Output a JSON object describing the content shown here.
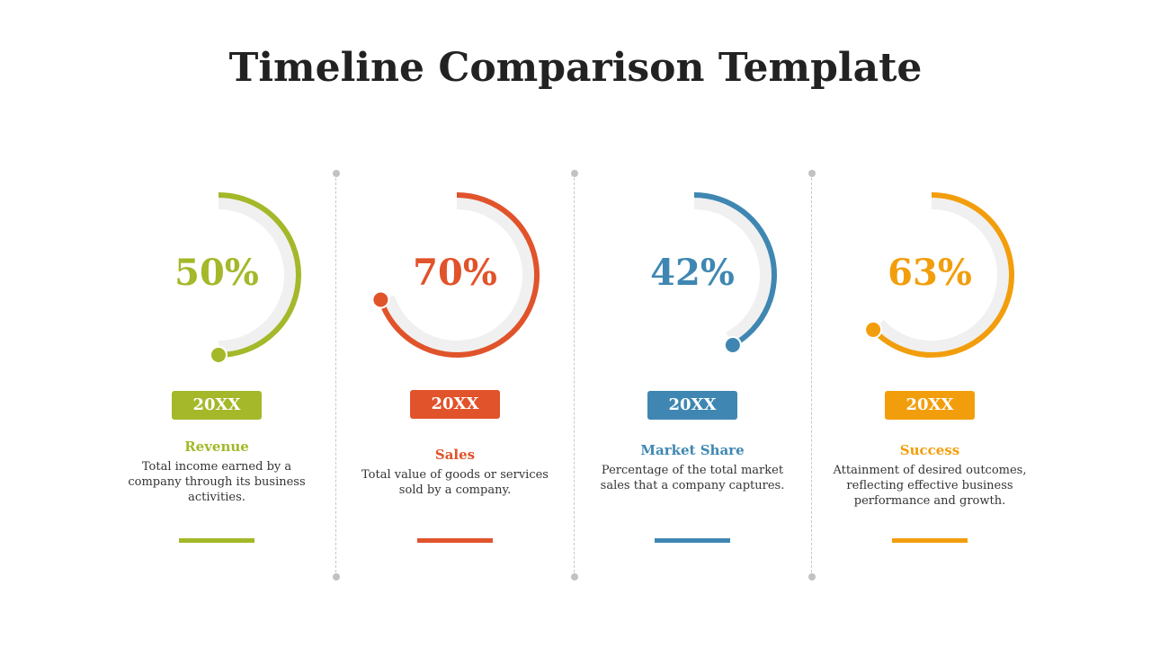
{
  "title": "Timeline Comparison Template",
  "items": [
    {
      "percent_label": "50%",
      "value": 0.5,
      "year": "20XX",
      "category": "Revenue",
      "description": "Total income earned by a company through its business activities.",
      "color": "#a4b82a"
    },
    {
      "percent_label": "70%",
      "value": 0.7,
      "year": "20XX",
      "category": "Sales",
      "description": "Total value of goods or services sold by a company.",
      "color": "#e0532b"
    },
    {
      "percent_label": "42%",
      "value": 0.42,
      "year": "20XX",
      "category": "Market Share",
      "description": "Percentage of the total market sales that a company captures.",
      "color": "#3f87b2"
    },
    {
      "percent_label": "63%",
      "value": 0.63,
      "year": "20XX",
      "category": "Success",
      "description": "Attainment of desired outcomes, reflecting effective business performance and growth.",
      "color": "#f29e0c"
    }
  ],
  "track_color": "#f0f0f0"
}
